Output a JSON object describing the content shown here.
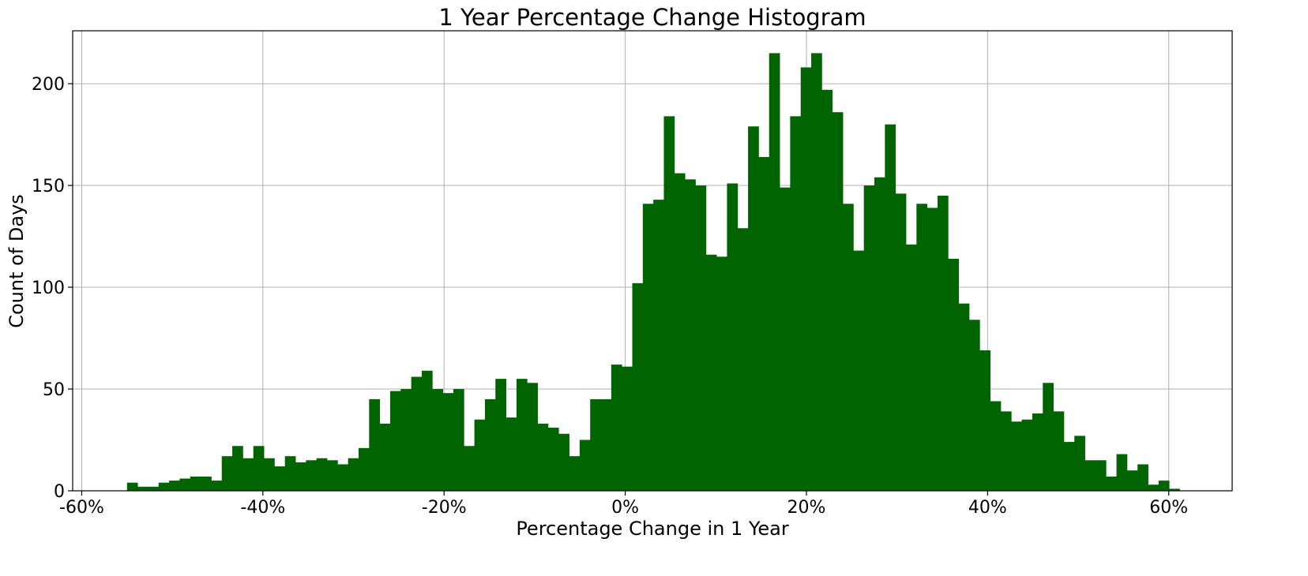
{
  "chart_data": {
    "type": "bar",
    "title": "1 Year Percentage Change Histogram",
    "xlabel": "Percentage Change in 1 Year",
    "ylabel": "Count of Days",
    "xlim": [
      -61,
      67
    ],
    "ylim": [
      0,
      226
    ],
    "bar_color": "#006400",
    "grid": true,
    "xticks": [
      {
        "value": -60,
        "label": "-60%"
      },
      {
        "value": -40,
        "label": "-40%"
      },
      {
        "value": -20,
        "label": "-20%"
      },
      {
        "value": 0,
        "label": "0%"
      },
      {
        "value": 20,
        "label": "20%"
      },
      {
        "value": 40,
        "label": "40%"
      },
      {
        "value": 60,
        "label": "60%"
      }
    ],
    "yticks": [
      {
        "value": 0,
        "label": "0"
      },
      {
        "value": 50,
        "label": "50"
      },
      {
        "value": 100,
        "label": "100"
      },
      {
        "value": 150,
        "label": "150"
      },
      {
        "value": 200,
        "label": "200"
      }
    ],
    "bin_start": -55.0,
    "bin_width": 1.162,
    "values": [
      4,
      2,
      2,
      4,
      5,
      6,
      7,
      7,
      5,
      17,
      22,
      16,
      22,
      16,
      12,
      17,
      14,
      15,
      16,
      15,
      13,
      16,
      21,
      45,
      33,
      49,
      50,
      56,
      59,
      50,
      48,
      50,
      22,
      35,
      45,
      55,
      36,
      55,
      53,
      33,
      31,
      28,
      17,
      25,
      45,
      45,
      62,
      61,
      102,
      141,
      143,
      184,
      156,
      153,
      150,
      116,
      115,
      151,
      129,
      179,
      164,
      215,
      149,
      184,
      208,
      215,
      197,
      186,
      141,
      118,
      150,
      154,
      180,
      146,
      121,
      141,
      139,
      145,
      114,
      92,
      84,
      69,
      44,
      39,
      34,
      35,
      38,
      53,
      39,
      24,
      27,
      15,
      15,
      7,
      18,
      10,
      13,
      3,
      5,
      1
    ]
  }
}
